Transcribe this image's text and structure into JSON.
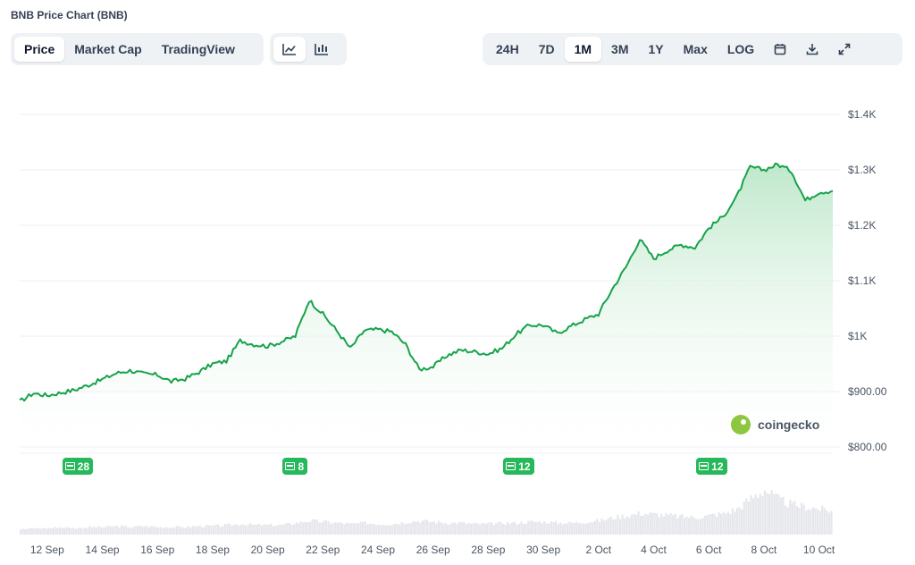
{
  "title": "BNB Price Chart (BNB)",
  "view_tabs": [
    "Price",
    "Market Cap",
    "TradingView"
  ],
  "active_view": "Price",
  "range_tabs": [
    "24H",
    "7D",
    "1M",
    "3M",
    "1Y",
    "Max",
    "LOG"
  ],
  "active_range": "1M",
  "icons": {
    "line_chart": "line-chart-icon",
    "candle_chart": "candlestick-icon",
    "calendar": "calendar-icon",
    "download": "download-icon",
    "expand": "expand-icon"
  },
  "watermark": "coingecko",
  "news_badges": [
    {
      "label": "28",
      "date": "13 Sep"
    },
    {
      "label": "8",
      "date": "21 Sep"
    },
    {
      "label": "12",
      "date": "29 Sep"
    },
    {
      "label": "12",
      "date": "6 Oct"
    }
  ],
  "colors": {
    "line": "#16a34a",
    "area_top": "#bfe8cb",
    "badge": "#28b85c"
  },
  "chart_data": {
    "type": "area",
    "y_ticks": [
      "$800.00",
      "$900.00",
      "$1K",
      "$1.1K",
      "$1.2K",
      "$1.3K",
      "$1.4K"
    ],
    "ylim": [
      780,
      1420
    ],
    "x_ticks": [
      "12 Sep",
      "14 Sep",
      "16 Sep",
      "18 Sep",
      "20 Sep",
      "22 Sep",
      "24 Sep",
      "26 Sep",
      "28 Sep",
      "30 Sep",
      "2 Oct",
      "4 Oct",
      "6 Oct",
      "8 Oct",
      "10 Oct"
    ],
    "x": [
      "11 Sep",
      "11 Sep 12h",
      "12 Sep",
      "12 Sep 12h",
      "13 Sep",
      "13 Sep 12h",
      "14 Sep",
      "14 Sep 12h",
      "15 Sep",
      "15 Sep 12h",
      "16 Sep",
      "16 Sep 12h",
      "17 Sep",
      "17 Sep 12h",
      "18 Sep",
      "18 Sep 12h",
      "19 Sep",
      "19 Sep 12h",
      "20 Sep",
      "20 Sep 12h",
      "21 Sep",
      "21 Sep 12h",
      "22 Sep",
      "22 Sep 12h",
      "23 Sep",
      "23 Sep 12h",
      "24 Sep",
      "24 Sep 12h",
      "25 Sep",
      "25 Sep 12h",
      "26 Sep",
      "26 Sep 12h",
      "27 Sep",
      "27 Sep 12h",
      "28 Sep",
      "28 Sep 12h",
      "29 Sep",
      "29 Sep 12h",
      "30 Sep",
      "30 Sep 12h",
      "1 Oct",
      "1 Oct 12h",
      "2 Oct",
      "2 Oct 12h",
      "3 Oct",
      "3 Oct 12h",
      "4 Oct",
      "4 Oct 12h",
      "5 Oct",
      "5 Oct 12h",
      "6 Oct",
      "6 Oct 12h",
      "7 Oct",
      "7 Oct 12h",
      "8 Oct",
      "8 Oct 12h",
      "9 Oct",
      "9 Oct 12h",
      "10 Oct",
      "10 Oct 12h"
    ],
    "price": [
      882,
      897,
      893,
      898,
      903,
      912,
      922,
      933,
      938,
      932,
      930,
      918,
      923,
      935,
      950,
      955,
      992,
      985,
      982,
      990,
      1000,
      1065,
      1040,
      1010,
      978,
      1010,
      1012,
      1008,
      985,
      940,
      945,
      965,
      975,
      972,
      968,
      978,
      1003,
      1020,
      1020,
      1005,
      1018,
      1030,
      1040,
      1085,
      1125,
      1175,
      1140,
      1155,
      1165,
      1160,
      1195,
      1215,
      1250,
      1305,
      1300,
      1310,
      1298,
      1245,
      1260,
      1262
    ],
    "volume": [
      5,
      6,
      6,
      7,
      6,
      7,
      7,
      8,
      7,
      8,
      7,
      7,
      7,
      8,
      8,
      9,
      10,
      9,
      9,
      9,
      11,
      13,
      12,
      11,
      10,
      11,
      10,
      10,
      12,
      13,
      12,
      11,
      11,
      10,
      10,
      11,
      11,
      12,
      12,
      11,
      11,
      12,
      13,
      16,
      18,
      20,
      19,
      18,
      17,
      16,
      18,
      20,
      24,
      34,
      42,
      33,
      28,
      26,
      24,
      22
    ]
  }
}
